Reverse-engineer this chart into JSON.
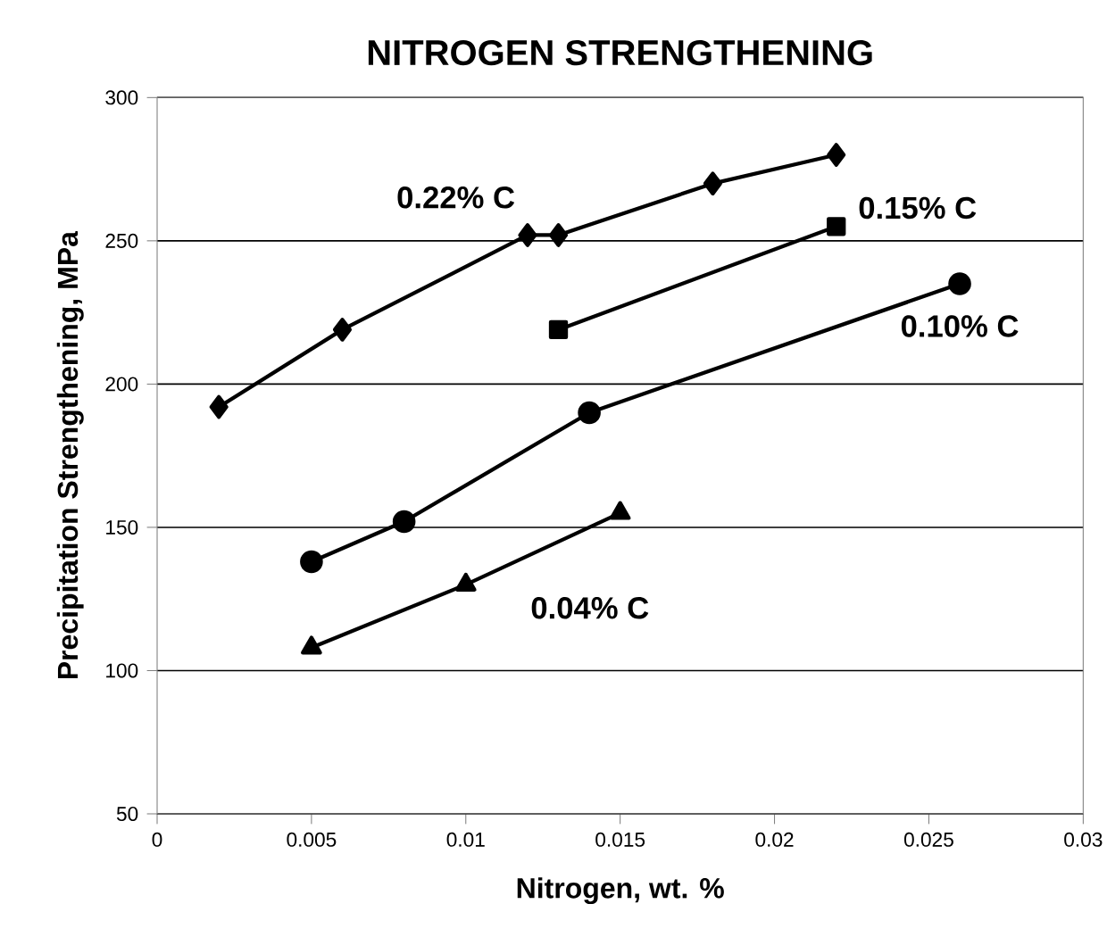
{
  "chart_data": {
    "type": "line",
    "title": "NITROGEN STRENGTHENING",
    "xlabel": "Nitrogen, wt. %",
    "ylabel": "Precipitation Strengthening, MPa",
    "xlim": [
      0,
      0.03
    ],
    "xticks": [
      0,
      0.005,
      0.01,
      0.015,
      0.02,
      0.025,
      0.03
    ],
    "ylim": [
      50,
      300
    ],
    "yticks": [
      50,
      100,
      150,
      200,
      250,
      300
    ],
    "grid": "y",
    "line_style": "solid",
    "series": [
      {
        "name": "0.22% C",
        "color": "#000000",
        "marker": "diamond",
        "x": [
          0.002,
          0.006,
          0.012,
          0.013,
          0.018,
          0.022
        ],
        "values": [
          192,
          219,
          252,
          252,
          270,
          280
        ]
      },
      {
        "name": "0.15% C",
        "color": "#000000",
        "marker": "square",
        "x": [
          0.013,
          0.022
        ],
        "values": [
          219,
          255
        ]
      },
      {
        "name": "0.10% C",
        "color": "#000000",
        "marker": "circle",
        "x": [
          0.005,
          0.008,
          0.014,
          0.026
        ],
        "values": [
          138,
          152,
          190,
          235
        ]
      },
      {
        "name": "0.04% C",
        "color": "#000000",
        "marker": "triangle",
        "x": [
          0.005,
          0.01,
          0.015
        ],
        "values": [
          108,
          130,
          155
        ]
      }
    ]
  }
}
